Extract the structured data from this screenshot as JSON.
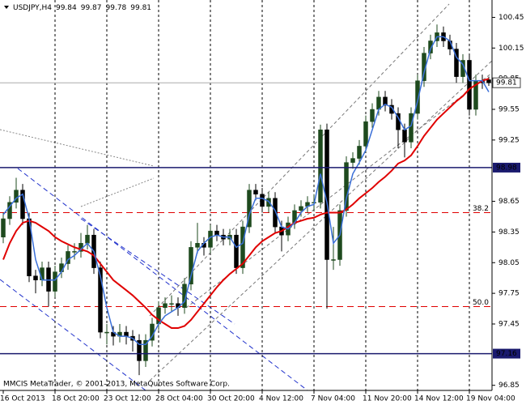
{
  "chart_data": {
    "type": "candlestick",
    "symbol": "USDJPY,H4",
    "footer": "MMCIS MetaTrader, © 2001-2013, MetaQuotes Software Corp.",
    "categories": [
      "16 Oct 2013",
      null,
      null,
      null,
      null,
      null,
      null,
      null,
      "18 Oct 20:00",
      null,
      null,
      null,
      null,
      null,
      null,
      null,
      "23 Oct 12:00",
      null,
      null,
      null,
      null,
      null,
      null,
      null,
      "28 Oct 04:00",
      null,
      null,
      null,
      null,
      null,
      null,
      null,
      "30 Oct 20:00",
      null,
      null,
      null,
      null,
      null,
      null,
      null,
      "4 Nov 12:00",
      null,
      null,
      null,
      null,
      null,
      null,
      null,
      "7 Nov 04:00",
      null,
      null,
      null,
      null,
      null,
      null,
      null,
      "11 Nov 20:00",
      null,
      null,
      null,
      null,
      null,
      null,
      null,
      "14 Nov 12:00",
      null,
      null,
      null,
      null,
      null,
      null,
      null,
      "19 Nov 04:00",
      null,
      null,
      null
    ],
    "open": [
      98.3,
      98.48,
      98.64,
      98.76,
      98.48,
      97.92,
      97.88,
      98.0,
      97.77,
      97.96,
      98.04,
      98.16,
      98.16,
      98.24,
      98.32,
      98.0,
      97.37,
      97.37,
      97.33,
      97.37,
      97.33,
      97.29,
      97.09,
      97.29,
      97.45,
      97.61,
      97.65,
      97.65,
      97.61,
      97.84,
      98.2,
      98.24,
      98.2,
      98.36,
      98.32,
      98.28,
      98.32,
      98.0,
      98.4,
      98.76,
      98.72,
      98.6,
      98.68,
      98.4,
      98.32,
      98.44,
      98.56,
      98.6,
      98.64,
      98.64,
      99.35,
      98.08,
      98.08,
      98.56,
      99.03,
      99.07,
      99.19,
      99.43,
      99.55,
      99.67,
      99.59,
      99.51,
      99.35,
      99.23,
      99.51,
      99.83,
      100.1,
      100.22,
      100.3,
      100.22,
      100.14,
      99.87,
      100.03,
      99.55,
      99.83,
      99.84
    ],
    "high": [
      98.54,
      98.7,
      98.88,
      98.82,
      98.54,
      97.98,
      98.06,
      98.06,
      98.02,
      98.1,
      98.22,
      98.24,
      98.34,
      98.42,
      98.38,
      98.06,
      97.45,
      97.43,
      97.45,
      97.43,
      97.39,
      97.35,
      97.35,
      97.51,
      97.67,
      97.71,
      97.73,
      97.71,
      97.9,
      98.26,
      98.44,
      98.3,
      98.42,
      98.42,
      98.38,
      98.38,
      98.38,
      98.46,
      98.82,
      98.82,
      98.78,
      98.74,
      98.74,
      98.46,
      98.5,
      98.62,
      98.66,
      98.7,
      98.72,
      99.4,
      99.41,
      98.4,
      98.62,
      99.09,
      99.13,
      99.25,
      99.49,
      99.61,
      99.73,
      99.73,
      99.65,
      99.57,
      99.41,
      99.57,
      99.89,
      100.16,
      100.28,
      100.38,
      100.36,
      100.28,
      100.2,
      100.09,
      100.09,
      99.89,
      99.89,
      99.87
    ],
    "low": [
      98.24,
      98.42,
      98.58,
      98.42,
      97.86,
      97.75,
      97.82,
      97.62,
      97.71,
      97.9,
      97.98,
      98.08,
      98.1,
      98.18,
      97.94,
      97.31,
      97.25,
      97.24,
      97.27,
      97.25,
      97.18,
      96.95,
      97.03,
      97.23,
      97.39,
      97.55,
      97.57,
      97.53,
      97.55,
      97.78,
      98.14,
      98.12,
      98.14,
      98.26,
      98.22,
      98.22,
      97.94,
      97.94,
      98.34,
      98.66,
      98.54,
      98.54,
      98.34,
      98.16,
      98.26,
      98.38,
      98.5,
      98.54,
      98.56,
      98.58,
      97.6,
      97.98,
      98.02,
      98.5,
      98.97,
      99.01,
      99.13,
      99.37,
      99.49,
      99.53,
      99.45,
      99.17,
      99.08,
      99.17,
      99.45,
      99.77,
      100.04,
      100.16,
      100.16,
      100.08,
      99.81,
      99.81,
      99.49,
      99.49,
      99.75,
      99.78
    ],
    "close": [
      98.48,
      98.64,
      98.76,
      98.48,
      97.92,
      97.88,
      98.0,
      97.77,
      97.96,
      98.04,
      98.16,
      98.16,
      98.24,
      98.32,
      98.0,
      97.37,
      97.37,
      97.33,
      97.37,
      97.33,
      97.29,
      97.09,
      97.29,
      97.45,
      97.61,
      97.65,
      97.65,
      97.61,
      97.84,
      98.2,
      98.24,
      98.2,
      98.36,
      98.32,
      98.28,
      98.32,
      98.0,
      98.4,
      98.76,
      98.72,
      98.6,
      98.68,
      98.4,
      98.32,
      98.44,
      98.56,
      98.6,
      98.64,
      98.64,
      99.35,
      98.08,
      98.08,
      98.56,
      99.03,
      99.07,
      99.19,
      99.43,
      99.55,
      99.67,
      99.59,
      99.51,
      99.35,
      99.23,
      99.51,
      99.83,
      100.1,
      100.22,
      100.3,
      100.22,
      100.14,
      99.87,
      100.03,
      99.55,
      99.83,
      99.81,
      99.81
    ],
    "up_color": "#1e4a1e",
    "down_color": "#000000",
    "ma_lines": [
      {
        "color": "#e00000",
        "values": [
          98.08,
          98.24,
          98.36,
          98.44,
          98.46,
          98.44,
          98.4,
          98.36,
          98.3,
          98.26,
          98.23,
          98.2,
          98.18,
          98.16,
          98.12,
          98.04,
          97.96,
          97.88,
          97.83,
          97.78,
          97.73,
          97.67,
          97.61,
          97.54,
          97.49,
          97.45,
          97.41,
          97.41,
          97.43,
          97.49,
          97.57,
          97.65,
          97.73,
          97.81,
          97.88,
          97.94,
          97.99,
          98.04,
          98.12,
          98.2,
          98.26,
          98.3,
          98.34,
          98.36,
          98.4,
          98.44,
          98.46,
          98.48,
          98.49,
          98.52,
          98.54,
          98.54,
          98.54,
          98.57,
          98.62,
          98.68,
          98.73,
          98.78,
          98.84,
          98.89,
          98.95,
          99.02,
          99.05,
          99.1,
          99.19,
          99.29,
          99.37,
          99.45,
          99.51,
          99.57,
          99.63,
          99.68,
          99.75,
          99.79,
          99.83,
          99.85
        ]
      },
      {
        "color": "#3a6fd8",
        "values": [
          98.52,
          98.6,
          98.68,
          98.72,
          98.48,
          98.08,
          97.88,
          97.88,
          97.88,
          97.96,
          98.08,
          98.12,
          98.18,
          98.24,
          98.16,
          97.92,
          97.61,
          97.37,
          97.33,
          97.33,
          97.31,
          97.25,
          97.25,
          97.33,
          97.45,
          97.53,
          97.57,
          97.61,
          97.67,
          97.92,
          98.16,
          98.24,
          98.3,
          98.32,
          98.3,
          98.3,
          98.2,
          98.24,
          98.52,
          98.68,
          98.68,
          98.65,
          98.56,
          98.4,
          98.38,
          98.44,
          98.54,
          98.6,
          98.62,
          98.92,
          98.64,
          98.24,
          98.32,
          98.68,
          98.92,
          99.03,
          99.15,
          99.35,
          99.55,
          99.6,
          99.57,
          99.47,
          99.35,
          99.39,
          99.63,
          99.91,
          100.14,
          100.26,
          100.26,
          100.22,
          100.06,
          99.99,
          99.83,
          99.83,
          99.83,
          99.72
        ]
      }
    ],
    "ylim": [
      96.8,
      100.62
    ],
    "yticks": [
      100.45,
      100.15,
      99.85,
      99.55,
      99.25,
      98.65,
      98.35,
      98.05,
      97.75,
      97.45,
      96.85
    ],
    "grid": true,
    "levels": [
      {
        "value": 98.98,
        "label": "98.98",
        "color": "#1a1a6e"
      },
      {
        "value": 97.16,
        "label": "97.16",
        "color": "#1a1a6e"
      }
    ],
    "fib_levels": [
      {
        "value": 98.54,
        "label": "38.2",
        "color": "#e00000"
      },
      {
        "value": 97.62,
        "label": "50.0",
        "color": "#e00000"
      }
    ],
    "last_price": 99.81
  }
}
